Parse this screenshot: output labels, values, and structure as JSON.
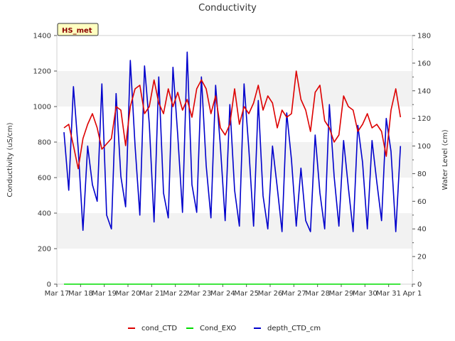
{
  "chart_data": {
    "type": "line",
    "title": "Conductivity",
    "badge": "HS_met",
    "ylabel": "Conductivity (uS/cm)",
    "y2label": "Water Level (cm)",
    "ylim": [
      0,
      1400
    ],
    "y2lim": [
      0,
      180
    ],
    "yticks": [
      "0",
      "200",
      "400",
      "600",
      "800",
      "1000",
      "1200",
      "1400"
    ],
    "y2ticks": [
      "0",
      "20",
      "40",
      "60",
      "80",
      "100",
      "120",
      "140",
      "160",
      "180"
    ],
    "x_tick_labels": [
      "Mar 17",
      "Mar 18",
      "Mar 19",
      "Mar 20",
      "Mar 21",
      "Mar 22",
      "Mar 23",
      "Mar 24",
      "Mar 25",
      "Mar 26",
      "Mar 27",
      "Mar 28",
      "Mar 29",
      "Mar 30",
      "Mar 31",
      "Apr 1"
    ],
    "x_range_days": [
      17,
      32
    ],
    "grid": "horizontal bands",
    "legend_position": "bottom",
    "series": [
      {
        "name": "cond_CTD",
        "color": "#dd0000",
        "axis": "left",
        "x": [
          17.3,
          17.5,
          17.7,
          17.9,
          18.1,
          18.3,
          18.5,
          18.7,
          18.9,
          19.1,
          19.3,
          19.5,
          19.7,
          19.9,
          20.1,
          20.3,
          20.5,
          20.7,
          20.9,
          21.1,
          21.3,
          21.5,
          21.7,
          21.9,
          22.1,
          22.3,
          22.5,
          22.7,
          22.9,
          23.1,
          23.3,
          23.5,
          23.7,
          23.9,
          24.1,
          24.3,
          24.5,
          24.7,
          24.9,
          25.1,
          25.3,
          25.5,
          25.7,
          25.9,
          26.1,
          26.3,
          26.5,
          26.7,
          26.9,
          27.1,
          27.3,
          27.5,
          27.7,
          27.9,
          28.1,
          28.3,
          28.5,
          28.7,
          28.9,
          29.1,
          29.3,
          29.5,
          29.7,
          29.9,
          30.1,
          30.3,
          30.5,
          30.7,
          30.9,
          31.1,
          31.3,
          31.5
        ],
        "y": [
          880,
          900,
          780,
          650,
          820,
          900,
          960,
          880,
          760,
          790,
          820,
          1000,
          980,
          780,
          1000,
          1100,
          1120,
          960,
          1000,
          1150,
          1020,
          960,
          1100,
          1000,
          1080,
          980,
          1040,
          940,
          1100,
          1150,
          1100,
          960,
          1060,
          880,
          840,
          900,
          1100,
          900,
          1000,
          960,
          1020,
          1120,
          980,
          1060,
          1020,
          880,
          980,
          940,
          960,
          1200,
          1040,
          980,
          860,
          1080,
          1120,
          920,
          880,
          800,
          840,
          1060,
          1000,
          980,
          860,
          900,
          960,
          880,
          900,
          860,
          720,
          980,
          1100,
          940
        ]
      },
      {
        "name": "Cond_EXO",
        "color": "#00dd00",
        "axis": "left",
        "x": [
          17.3,
          31.5
        ],
        "y": [
          0,
          0
        ]
      },
      {
        "name": "depth_CTD_cm",
        "color": "#0000cc",
        "axis": "right",
        "x": [
          17.3,
          17.5,
          17.7,
          17.9,
          18.1,
          18.3,
          18.5,
          18.7,
          18.9,
          19.1,
          19.3,
          19.5,
          19.7,
          19.9,
          20.1,
          20.3,
          20.5,
          20.7,
          20.9,
          21.1,
          21.3,
          21.5,
          21.7,
          21.9,
          22.1,
          22.3,
          22.5,
          22.7,
          22.9,
          23.1,
          23.3,
          23.5,
          23.7,
          23.9,
          24.1,
          24.3,
          24.5,
          24.7,
          24.9,
          25.1,
          25.3,
          25.5,
          25.7,
          25.9,
          26.1,
          26.3,
          26.5,
          26.7,
          26.9,
          27.1,
          27.3,
          27.5,
          27.7,
          27.9,
          28.1,
          28.3,
          28.5,
          28.7,
          28.9,
          29.1,
          29.3,
          29.5,
          29.7,
          29.9,
          30.1,
          30.3,
          30.5,
          30.7,
          30.9,
          31.1,
          31.3,
          31.5
        ],
        "y": [
          110,
          68,
          143,
          98,
          39,
          100,
          72,
          60,
          145,
          50,
          40,
          138,
          78,
          56,
          162,
          100,
          50,
          158,
          116,
          45,
          150,
          66,
          48,
          157,
          108,
          52,
          168,
          72,
          52,
          150,
          86,
          48,
          144,
          100,
          46,
          130,
          68,
          42,
          145,
          98,
          42,
          133,
          64,
          40,
          100,
          70,
          38,
          124,
          90,
          42,
          84,
          46,
          38,
          108,
          66,
          40,
          130,
          78,
          42,
          104,
          70,
          38,
          115,
          88,
          40,
          104,
          74,
          46,
          120,
          96,
          38,
          100
        ]
      }
    ]
  }
}
